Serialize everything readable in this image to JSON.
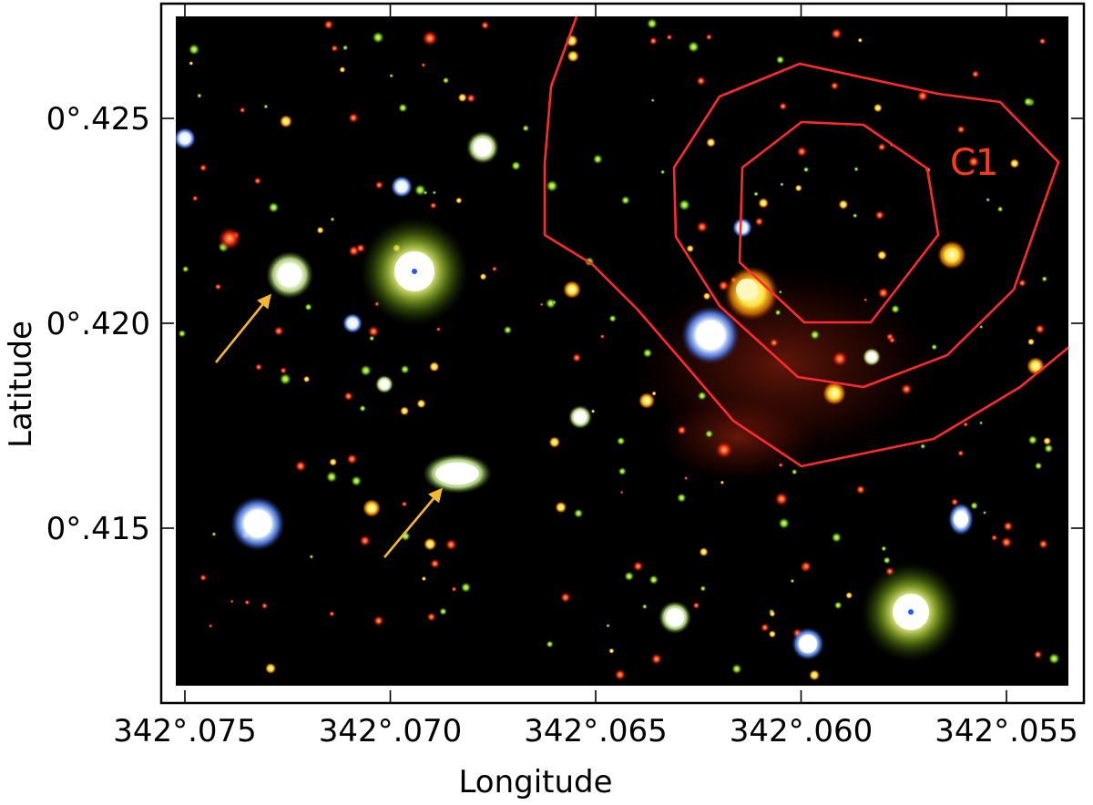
{
  "figure": {
    "x_axis": {
      "title": "Longitude",
      "ticks": [
        {
          "value": 342.075,
          "label": "342°.075"
        },
        {
          "value": 342.07,
          "label": "342°.070"
        },
        {
          "value": 342.065,
          "label": "342°.065"
        },
        {
          "value": 342.06,
          "label": "342°.060"
        },
        {
          "value": 342.055,
          "label": "342°.055"
        }
      ]
    },
    "y_axis": {
      "title": "Latitude",
      "ticks": [
        {
          "value": 0.425,
          "label": "0°.425"
        },
        {
          "value": 0.42,
          "label": "0°.420"
        },
        {
          "value": 0.415,
          "label": "0°.415"
        }
      ]
    },
    "image_description_colors": {
      "background": "#000000",
      "contour": "#ff2a2a",
      "annotation_label": "#ff3a1a",
      "arrow": "#f5b82e"
    },
    "annotations": {
      "clump_label": "C1"
    }
  }
}
